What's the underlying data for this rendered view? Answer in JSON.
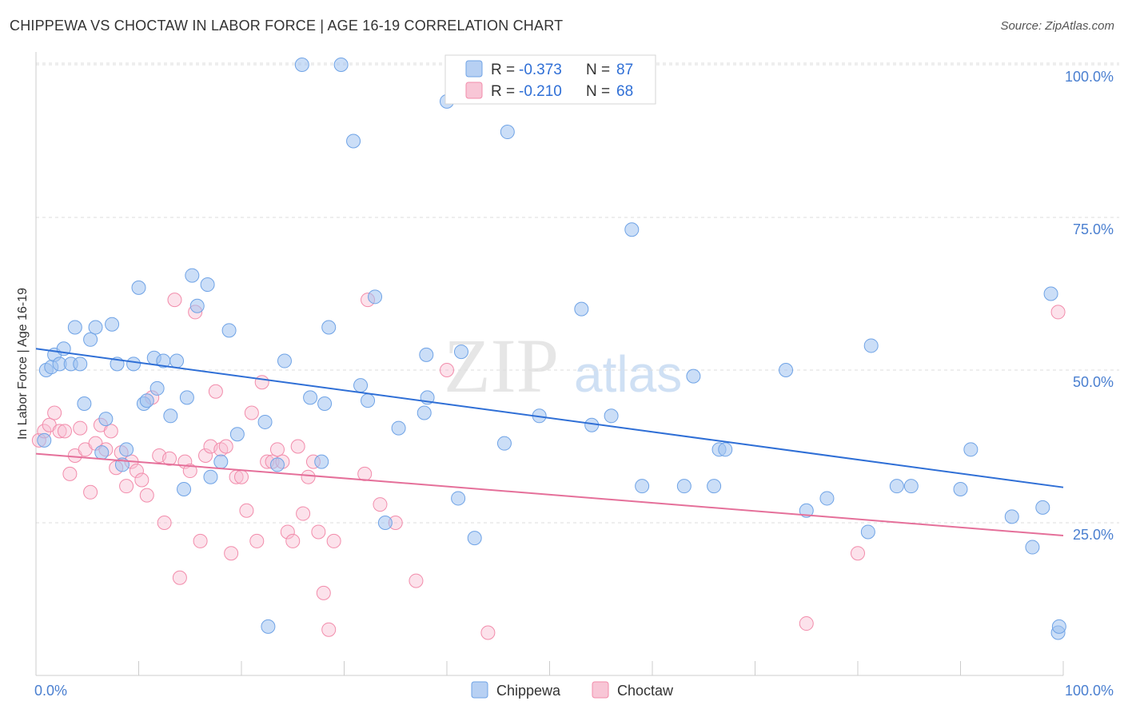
{
  "title": "CHIPPEWA VS CHOCTAW IN LABOR FORCE | AGE 16-19 CORRELATION CHART",
  "source": "Source: ZipAtlas.com",
  "watermark": {
    "zip": "ZIP",
    "atlas": "atlas"
  },
  "colors": {
    "chippewa": "#6fa3e6",
    "choctaw": "#f28cab",
    "chippewa_line": "#2f6fd6",
    "choctaw_line": "#e5709a",
    "grid": "#dddddd",
    "tick_text": "#4a7fd0"
  },
  "legend_top": {
    "rows": [
      {
        "r_label": "R =",
        "r_value": "-0.373",
        "n_label": "N =",
        "n_value": "87"
      },
      {
        "r_label": "R =",
        "r_value": "-0.210",
        "n_label": "N =",
        "n_value": "68"
      }
    ]
  },
  "legend_bottom": {
    "series1": "Chippewa",
    "series2": "Choctaw"
  },
  "chart_data": {
    "type": "scatter",
    "title": "CHIPPEWA VS CHOCTAW IN LABOR FORCE | AGE 16-19 CORRELATION CHART",
    "xlabel": "",
    "ylabel": "In Labor Force | Age 16-19",
    "xlim": [
      0,
      100
    ],
    "ylim": [
      0,
      105
    ],
    "x_tick_labels": [
      "0.0%",
      "100.0%"
    ],
    "y_ticks": [
      25,
      50,
      75,
      100
    ],
    "y_tick_labels": [
      "25.0%",
      "50.0%",
      "75.0%",
      "100.0%"
    ],
    "grid": "horizontal dashed",
    "legend_position": "top-center",
    "series": [
      {
        "name": "Chippewa",
        "r": -0.373,
        "n": 87,
        "trend": {
          "x": [
            0,
            100
          ],
          "y": [
            53.5,
            30.8
          ]
        },
        "points": [
          [
            0.8,
            38.5
          ],
          [
            1.0,
            50.0
          ],
          [
            1.5,
            50.5
          ],
          [
            1.8,
            52.5
          ],
          [
            2.3,
            51.0
          ],
          [
            2.7,
            53.5
          ],
          [
            3.4,
            51.0
          ],
          [
            3.8,
            57.0
          ],
          [
            4.3,
            51.0
          ],
          [
            4.7,
            44.5
          ],
          [
            5.3,
            55.0
          ],
          [
            5.8,
            57.0
          ],
          [
            6.4,
            36.5
          ],
          [
            6.8,
            42.0
          ],
          [
            7.4,
            57.5
          ],
          [
            7.9,
            51.0
          ],
          [
            8.4,
            34.5
          ],
          [
            8.8,
            37.0
          ],
          [
            9.5,
            51.0
          ],
          [
            10.0,
            63.5
          ],
          [
            10.5,
            44.5
          ],
          [
            10.8,
            45.0
          ],
          [
            11.5,
            52.0
          ],
          [
            11.8,
            47.0
          ],
          [
            12.4,
            51.5
          ],
          [
            13.1,
            42.5
          ],
          [
            13.7,
            51.5
          ],
          [
            14.4,
            30.5
          ],
          [
            14.7,
            45.5
          ],
          [
            15.2,
            65.5
          ],
          [
            15.7,
            60.5
          ],
          [
            16.7,
            64.0
          ],
          [
            17.0,
            32.5
          ],
          [
            18.0,
            35.0
          ],
          [
            18.8,
            56.5
          ],
          [
            19.6,
            39.5
          ],
          [
            22.3,
            41.5
          ],
          [
            22.6,
            8.0
          ],
          [
            23.5,
            34.5
          ],
          [
            24.2,
            51.5
          ],
          [
            25.9,
            100.0
          ],
          [
            26.7,
            45.5
          ],
          [
            27.8,
            35.0
          ],
          [
            28.1,
            44.5
          ],
          [
            28.5,
            57.0
          ],
          [
            29.7,
            100.0
          ],
          [
            30.9,
            87.5
          ],
          [
            31.6,
            47.5
          ],
          [
            32.3,
            45.0
          ],
          [
            33.0,
            62.0
          ],
          [
            34.0,
            25.0
          ],
          [
            35.3,
            40.5
          ],
          [
            37.8,
            43.0
          ],
          [
            38.0,
            52.5
          ],
          [
            38.1,
            45.5
          ],
          [
            40.0,
            94.0
          ],
          [
            41.1,
            29.0
          ],
          [
            41.4,
            53.0
          ],
          [
            42.7,
            22.5
          ],
          [
            45.6,
            38.0
          ],
          [
            45.9,
            89.0
          ],
          [
            49.0,
            42.5
          ],
          [
            53.1,
            60.0
          ],
          [
            54.1,
            41.0
          ],
          [
            56.0,
            42.5
          ],
          [
            58.0,
            73.0
          ],
          [
            59.0,
            31.0
          ],
          [
            63.1,
            31.0
          ],
          [
            64.0,
            49.0
          ],
          [
            66.0,
            31.0
          ],
          [
            66.5,
            37.0
          ],
          [
            67.1,
            37.0
          ],
          [
            73.0,
            50.0
          ],
          [
            75.0,
            27.0
          ],
          [
            77.0,
            29.0
          ],
          [
            81.0,
            23.5
          ],
          [
            81.3,
            54.0
          ],
          [
            83.8,
            31.0
          ],
          [
            85.2,
            31.0
          ],
          [
            90.0,
            30.5
          ],
          [
            91.0,
            37.0
          ],
          [
            95.0,
            26.0
          ],
          [
            97.0,
            21.0
          ],
          [
            98.0,
            27.5
          ],
          [
            98.8,
            62.5
          ],
          [
            99.5,
            7.0
          ],
          [
            99.6,
            8.0
          ]
        ]
      },
      {
        "name": "Choctaw",
        "r": -0.21,
        "n": 68,
        "trend": {
          "x": [
            0,
            100
          ],
          "y": [
            36.3,
            22.9
          ]
        },
        "points": [
          [
            0.3,
            38.5
          ],
          [
            0.8,
            40.0
          ],
          [
            1.3,
            41.0
          ],
          [
            1.8,
            43.0
          ],
          [
            2.3,
            40.0
          ],
          [
            2.8,
            40.0
          ],
          [
            3.3,
            33.0
          ],
          [
            3.8,
            36.0
          ],
          [
            4.3,
            40.5
          ],
          [
            4.8,
            37.0
          ],
          [
            5.3,
            30.0
          ],
          [
            5.8,
            38.0
          ],
          [
            6.3,
            41.0
          ],
          [
            6.8,
            37.0
          ],
          [
            7.3,
            40.0
          ],
          [
            7.8,
            34.0
          ],
          [
            8.3,
            36.5
          ],
          [
            8.8,
            31.0
          ],
          [
            9.3,
            35.0
          ],
          [
            9.8,
            33.5
          ],
          [
            10.3,
            32.0
          ],
          [
            10.8,
            29.5
          ],
          [
            11.3,
            45.5
          ],
          [
            12.0,
            36.0
          ],
          [
            12.5,
            25.0
          ],
          [
            13.0,
            35.5
          ],
          [
            13.5,
            61.5
          ],
          [
            14.0,
            16.0
          ],
          [
            14.5,
            35.0
          ],
          [
            15.0,
            33.5
          ],
          [
            15.5,
            59.5
          ],
          [
            16.0,
            22.0
          ],
          [
            16.5,
            36.0
          ],
          [
            17.0,
            37.5
          ],
          [
            17.5,
            46.5
          ],
          [
            18.0,
            37.0
          ],
          [
            18.5,
            37.5
          ],
          [
            19.0,
            20.0
          ],
          [
            19.5,
            32.5
          ],
          [
            20.0,
            32.5
          ],
          [
            20.5,
            27.0
          ],
          [
            21.0,
            43.0
          ],
          [
            21.5,
            22.0
          ],
          [
            22.0,
            48.0
          ],
          [
            22.5,
            35.0
          ],
          [
            23.0,
            35.0
          ],
          [
            23.5,
            37.0
          ],
          [
            24.0,
            35.0
          ],
          [
            24.5,
            23.5
          ],
          [
            25.0,
            22.0
          ],
          [
            25.5,
            37.5
          ],
          [
            26.0,
            26.5
          ],
          [
            26.5,
            32.5
          ],
          [
            27.0,
            35.0
          ],
          [
            27.5,
            23.5
          ],
          [
            28.0,
            13.5
          ],
          [
            28.5,
            7.5
          ],
          [
            29.0,
            22.0
          ],
          [
            32.0,
            33.0
          ],
          [
            32.3,
            61.5
          ],
          [
            33.5,
            28.0
          ],
          [
            35.0,
            25.0
          ],
          [
            37.0,
            15.5
          ],
          [
            40.0,
            50.0
          ],
          [
            44.0,
            7.0
          ],
          [
            75.0,
            8.5
          ],
          [
            80.0,
            20.0
          ],
          [
            99.5,
            59.5
          ]
        ]
      }
    ]
  }
}
